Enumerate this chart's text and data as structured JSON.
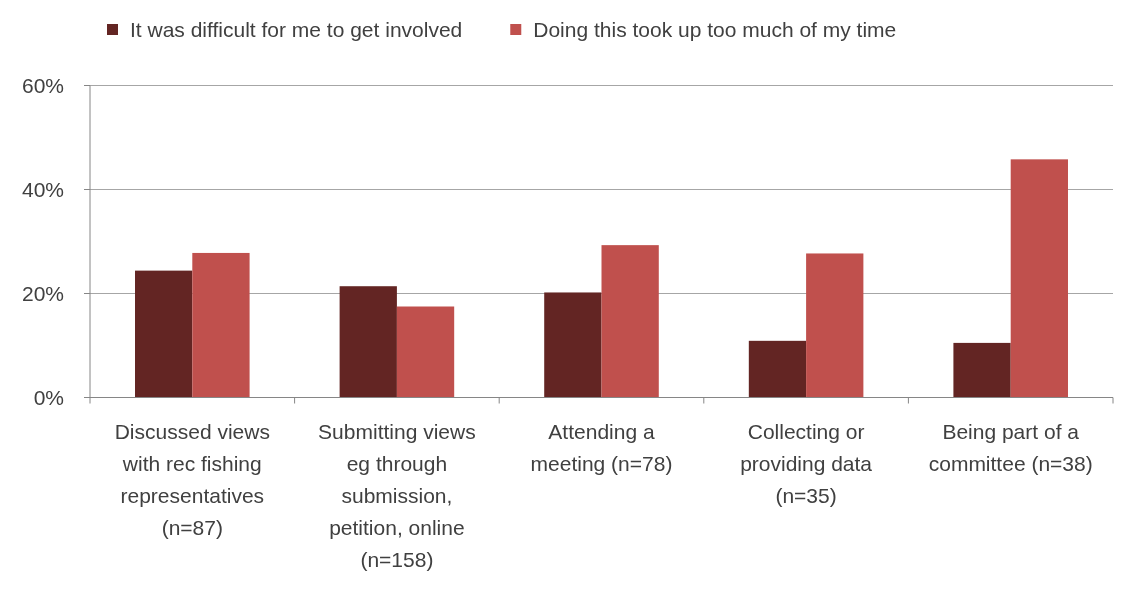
{
  "chart_data": {
    "type": "bar",
    "categories": [
      "Discussed views with rec fishing representatives (n=87)",
      "Submitting views eg through submission, petition, online (n=158)",
      "Attending a meeting (n=78)",
      "Collecting or providing data (n=35)",
      "Being part of a committee (n=38)"
    ],
    "series": [
      {
        "name": "It was difficult for me to get involved",
        "color": "#632523",
        "values": [
          24.4,
          21.4,
          20.2,
          10.9,
          10.5
        ]
      },
      {
        "name": "Doing this took up too much of my time",
        "color": "#c0504d",
        "values": [
          27.8,
          17.5,
          29.3,
          27.7,
          45.8
        ]
      }
    ],
    "ylim": [
      0,
      60
    ],
    "yticks": [
      {
        "value": 0,
        "label": "0%"
      },
      {
        "value": 20,
        "label": "20%"
      },
      {
        "value": 40,
        "label": "40%"
      },
      {
        "value": 60,
        "label": "60%"
      }
    ],
    "grid": "y",
    "legend": "top"
  }
}
